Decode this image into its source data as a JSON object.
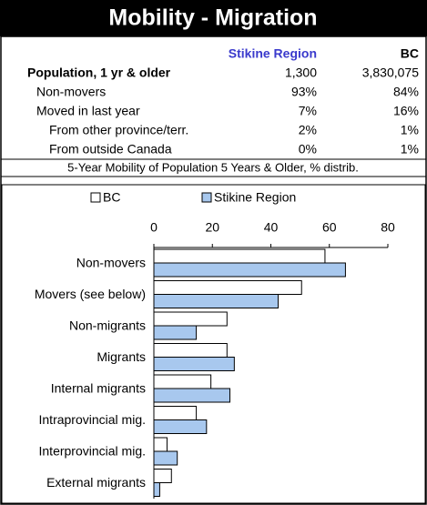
{
  "header": {
    "title": "Mobility - Migration"
  },
  "table": {
    "columns": [
      "Stikine Region",
      "BC"
    ],
    "rows": [
      [
        "Population, 1 yr & older",
        "1,300",
        "3,830,075"
      ],
      [
        "Non-movers",
        "93%",
        "84%"
      ],
      [
        "Moved in last year",
        "7%",
        "16%"
      ],
      [
        "From other province/terr.",
        "2%",
        "1%"
      ],
      [
        "From outside Canada",
        "0%",
        "1%"
      ]
    ]
  },
  "chart_data": {
    "type": "barh",
    "title": "5-Year Mobility of Population 5 Years & Older, % distrib.",
    "categories": [
      "Non-movers",
      "Movers (see below)",
      "Non-migrants",
      "Migrants",
      "Internal migrants",
      "Intraprovincial mig.",
      "Interprovincial mig.",
      "External migrants"
    ],
    "series": [
      {
        "name": "BC",
        "color": "#ffffff",
        "values": [
          58.5,
          50.5,
          25,
          25,
          19.5,
          14.5,
          4.5,
          6
        ]
      },
      {
        "name": "Stikine Region",
        "color": "#a8c8ee",
        "values": [
          65.5,
          42.5,
          14.5,
          27.5,
          26,
          18,
          8,
          2
        ]
      }
    ],
    "xlim": [
      0,
      80
    ],
    "xticks": [
      0,
      20,
      40,
      60,
      80
    ]
  }
}
